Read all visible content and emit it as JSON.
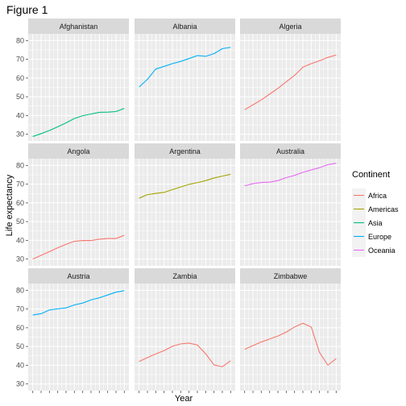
{
  "figure_title": "Figure 1",
  "chart_data": {
    "type": "line",
    "xlabel": "Year",
    "ylabel": "Life expectancy",
    "x": [
      1952,
      1957,
      1962,
      1967,
      1972,
      1977,
      1982,
      1987,
      1992,
      1997,
      2002,
      2007
    ],
    "xlim": [
      1949.25,
      2009.75
    ],
    "ylim": [
      26.4,
      83.6
    ],
    "yticks": [
      30,
      40,
      50,
      60,
      70,
      80
    ],
    "yticks_minor": [
      35,
      45,
      55,
      65,
      75
    ],
    "grid": true,
    "legend": {
      "title": "Continent",
      "position": "right",
      "entries": [
        {
          "name": "Africa",
          "color": "#F8766D"
        },
        {
          "name": "Americas",
          "color": "#A3A500"
        },
        {
          "name": "Asia",
          "color": "#00BF7D"
        },
        {
          "name": "Europe",
          "color": "#00B0F6"
        },
        {
          "name": "Oceania",
          "color": "#E76BF3"
        }
      ]
    },
    "facets": [
      {
        "name": "Afghanistan",
        "continent": "Asia",
        "values": [
          28.8,
          30.3,
          32.0,
          34.0,
          36.1,
          38.4,
          39.9,
          40.8,
          41.7,
          41.8,
          42.1,
          43.8
        ]
      },
      {
        "name": "Albania",
        "continent": "Europe",
        "values": [
          55.2,
          59.3,
          64.8,
          66.2,
          67.7,
          68.9,
          70.4,
          72.0,
          71.6,
          73.0,
          75.7,
          76.4
        ]
      },
      {
        "name": "Algeria",
        "continent": "Africa",
        "values": [
          43.1,
          45.7,
          48.3,
          51.4,
          54.5,
          58.0,
          61.4,
          65.8,
          67.7,
          69.2,
          71.0,
          72.3
        ]
      },
      {
        "name": "Angola",
        "continent": "Africa",
        "values": [
          30.0,
          32.0,
          34.0,
          36.0,
          37.9,
          39.5,
          39.9,
          39.9,
          40.6,
          41.0,
          41.0,
          42.7
        ]
      },
      {
        "name": "Argentina",
        "continent": "Americas",
        "values": [
          62.5,
          64.4,
          65.1,
          65.6,
          67.1,
          68.5,
          69.9,
          70.8,
          71.9,
          73.3,
          74.3,
          75.3
        ]
      },
      {
        "name": "Australia",
        "continent": "Oceania",
        "values": [
          69.1,
          70.3,
          70.9,
          71.1,
          71.9,
          73.5,
          74.7,
          76.3,
          77.6,
          78.8,
          80.4,
          81.2
        ]
      },
      {
        "name": "Austria",
        "continent": "Europe",
        "values": [
          66.8,
          67.5,
          69.5,
          70.1,
          70.6,
          72.2,
          73.2,
          74.9,
          76.0,
          77.5,
          79.0,
          79.8
        ]
      },
      {
        "name": "Zambia",
        "continent": "Africa",
        "values": [
          42.0,
          44.1,
          46.0,
          47.8,
          50.1,
          51.4,
          51.8,
          50.8,
          46.1,
          40.2,
          39.2,
          42.4
        ]
      },
      {
        "name": "Zimbabwe",
        "continent": "Africa",
        "values": [
          48.5,
          50.5,
          52.4,
          54.0,
          55.6,
          57.7,
          60.4,
          62.4,
          60.4,
          46.8,
          40.0,
          43.5
        ]
      }
    ]
  }
}
